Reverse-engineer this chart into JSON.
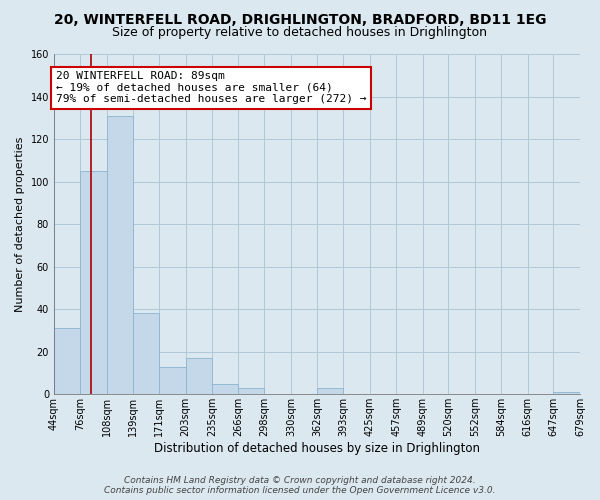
{
  "title": "20, WINTERFELL ROAD, DRIGHLINGTON, BRADFORD, BD11 1EG",
  "subtitle": "Size of property relative to detached houses in Drighlington",
  "xlabel": "Distribution of detached houses by size in Drighlington",
  "ylabel": "Number of detached properties",
  "bar_color": "#c5d8ea",
  "bar_edge_color": "#8ab4d0",
  "bin_edges": [
    44,
    76,
    108,
    139,
    171,
    203,
    235,
    266,
    298,
    330,
    362,
    393,
    425,
    457,
    489,
    520,
    552,
    584,
    616,
    647,
    679
  ],
  "bar_heights": [
    31,
    105,
    131,
    38,
    13,
    17,
    5,
    3,
    0,
    0,
    3,
    0,
    0,
    0,
    0,
    0,
    0,
    0,
    0,
    1
  ],
  "tick_labels": [
    "44sqm",
    "76sqm",
    "108sqm",
    "139sqm",
    "171sqm",
    "203sqm",
    "235sqm",
    "266sqm",
    "298sqm",
    "330sqm",
    "362sqm",
    "393sqm",
    "425sqm",
    "457sqm",
    "489sqm",
    "520sqm",
    "552sqm",
    "584sqm",
    "616sqm",
    "647sqm",
    "679sqm"
  ],
  "property_line_x": 89,
  "annotation_text": "20 WINTERFELL ROAD: 89sqm\n← 19% of detached houses are smaller (64)\n79% of semi-detached houses are larger (272) →",
  "annotation_box_color": "#ffffff",
  "annotation_box_edge_color": "#cc0000",
  "property_line_color": "#aa0000",
  "ylim": [
    0,
    160
  ],
  "yticks": [
    0,
    20,
    40,
    60,
    80,
    100,
    120,
    140,
    160
  ],
  "footer": "Contains HM Land Registry data © Crown copyright and database right 2024.\nContains public sector information licensed under the Open Government Licence v3.0.",
  "background_color": "#dce8f0",
  "plot_bg_color": "#dce8f0",
  "grid_color": "#b0c8d8",
  "title_fontsize": 10,
  "subtitle_fontsize": 9,
  "xlabel_fontsize": 8.5,
  "ylabel_fontsize": 8,
  "tick_fontsize": 7,
  "footer_fontsize": 6.5,
  "annotation_fontsize": 8
}
